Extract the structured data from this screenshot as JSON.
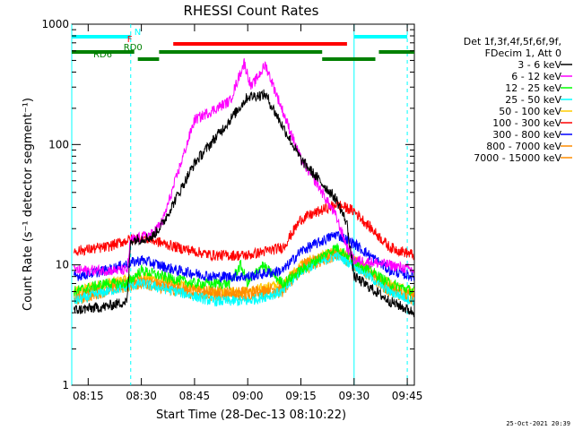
{
  "chart_data": {
    "type": "line",
    "title": "RHESSI Count Rates",
    "xlabel": "Start Time (28-Dec-13 08:10:22)",
    "ylabel": "Count Rate (s⁻¹ detector segment⁻¹)",
    "y_scale": "log",
    "ylim": [
      1,
      1000
    ],
    "xlim": [
      "08:10:22",
      "09:47:00"
    ],
    "x_ticks": [
      "08:15",
      "08:30",
      "08:45",
      "09:00",
      "09:15",
      "09:30",
      "09:45"
    ],
    "y_ticks": [
      "1",
      "10",
      "100",
      "1000"
    ],
    "legend_position": "right",
    "legend_header": [
      "Det 1f,3f,4f,5f,6f,9f,",
      "FDecim 1, Att 0"
    ],
    "series": [
      {
        "name": "3 - 6 keV",
        "color": "#000000",
        "x": [
          "08:11",
          "08:20",
          "08:26",
          "08:27",
          "08:33",
          "08:36",
          "08:45",
          "08:55",
          "09:00",
          "09:05",
          "09:15",
          "09:25",
          "09:28",
          "09:30",
          "09:40",
          "09:47"
        ],
        "y": [
          4.2,
          4.5,
          5.0,
          16,
          17,
          22,
          70,
          160,
          250,
          260,
          75,
          35,
          22,
          8,
          5,
          4
        ]
      },
      {
        "name": "6 - 12 keV",
        "color": "#ff00ff",
        "x": [
          "08:11",
          "08:20",
          "08:26",
          "08:27",
          "08:33",
          "08:36",
          "08:45",
          "08:55",
          "08:59",
          "09:01",
          "09:05",
          "09:15",
          "09:20",
          "09:25",
          "09:28",
          "09:30",
          "09:40",
          "09:47"
        ],
        "y": [
          9,
          9,
          9,
          16,
          18,
          23,
          160,
          230,
          480,
          300,
          460,
          75,
          45,
          25,
          14,
          11,
          10,
          9
        ]
      },
      {
        "name": "12 - 25 keV",
        "color": "#00ff00",
        "x": [
          "08:11",
          "08:20",
          "08:26",
          "08:30",
          "08:36",
          "08:45",
          "08:55",
          "08:58",
          "09:00",
          "09:04",
          "09:10",
          "09:15",
          "09:25",
          "09:30",
          "09:40",
          "09:47"
        ],
        "y": [
          6,
          7,
          7,
          9,
          8,
          7,
          7,
          10,
          7,
          10,
          7,
          9,
          14,
          11,
          7,
          6
        ]
      },
      {
        "name": "25 - 50 keV",
        "color": "#00ffff",
        "x": [
          "08:11",
          "08:20",
          "08:30",
          "08:40",
          "08:50",
          "09:00",
          "09:10",
          "09:15",
          "09:25",
          "09:30",
          "09:40",
          "09:47"
        ],
        "y": [
          5,
          6,
          7,
          6,
          5,
          5,
          6,
          9,
          12,
          10,
          6,
          5
        ]
      },
      {
        "name": "50 - 100 keV",
        "color": "#ffcc00",
        "x": [
          "08:11",
          "08:20",
          "08:30",
          "08:40",
          "08:50",
          "09:00",
          "09:10",
          "09:15",
          "09:25",
          "09:30",
          "09:40",
          "09:47"
        ],
        "y": [
          6,
          7,
          8,
          7,
          6,
          6,
          7,
          10,
          13,
          11,
          7,
          6
        ]
      },
      {
        "name": "100 - 300 keV",
        "color": "#ff0000",
        "x": [
          "08:11",
          "08:20",
          "08:26",
          "08:30",
          "08:40",
          "08:50",
          "09:00",
          "09:10",
          "09:15",
          "09:25",
          "09:30",
          "09:40",
          "09:47"
        ],
        "y": [
          13,
          14,
          16,
          17,
          14,
          12,
          12,
          14,
          24,
          32,
          28,
          14,
          12
        ]
      },
      {
        "name": "300 - 800 keV",
        "color": "#0000ff",
        "x": [
          "08:11",
          "08:20",
          "08:30",
          "08:40",
          "08:50",
          "09:00",
          "09:10",
          "09:15",
          "09:25",
          "09:30",
          "09:40",
          "09:47"
        ],
        "y": [
          8,
          9,
          11,
          9,
          8,
          8,
          9,
          13,
          18,
          15,
          9,
          8
        ]
      },
      {
        "name": "800 - 7000 keV",
        "color": "#ff8c00",
        "x": [
          "08:11",
          "08:20",
          "08:30",
          "08:40",
          "08:50",
          "09:00",
          "09:10",
          "09:15",
          "09:25",
          "09:30",
          "09:40",
          "09:47"
        ],
        "y": [
          5.5,
          6.5,
          7.5,
          6.5,
          6,
          6,
          6.5,
          10,
          13,
          11,
          6.5,
          5.5
        ]
      },
      {
        "name": "7000 - 15000 keV",
        "color": "#ff8c00",
        "x": [
          "08:11",
          "08:20",
          "08:30",
          "08:40",
          "08:50",
          "09:00",
          "09:10",
          "09:15",
          "09:25",
          "09:30",
          "09:40",
          "09:47"
        ],
        "y": [
          5,
          6,
          7,
          6,
          5.5,
          5.5,
          6,
          9,
          12,
          10,
          6,
          5
        ]
      }
    ],
    "vertical_lines": [
      {
        "time": "08:10:22",
        "style": "solid",
        "color": "#00ffff"
      },
      {
        "time": "08:27",
        "style": "dashed",
        "color": "#00ffff"
      },
      {
        "time": "09:30",
        "style": "solid",
        "color": "#00ffff"
      },
      {
        "time": "09:45",
        "style": "dashed",
        "color": "#00ffff"
      }
    ],
    "flag_bars": [
      {
        "label": "N",
        "color": "#00ffff",
        "row": "N",
        "intervals": [
          [
            "08:10:22",
            "08:27"
          ],
          [
            "09:30",
            "09:45"
          ]
        ]
      },
      {
        "label": "F",
        "color": "#ff0000",
        "row": "F",
        "intervals": [
          [
            "08:39",
            "09:28"
          ]
        ]
      },
      {
        "label": "RD0",
        "color": "#008000",
        "row": "RD0",
        "intervals": [
          [
            "08:10:22",
            "08:28"
          ],
          [
            "08:35",
            "09:21"
          ],
          [
            "09:37",
            "09:47"
          ]
        ]
      },
      {
        "label": "RD6",
        "color": "#008000",
        "row": "RD6",
        "intervals": [
          [
            "08:29",
            "08:35"
          ],
          [
            "09:21",
            "09:36"
          ]
        ]
      }
    ]
  },
  "footer_timestamp": "25-Oct-2021 20:39"
}
